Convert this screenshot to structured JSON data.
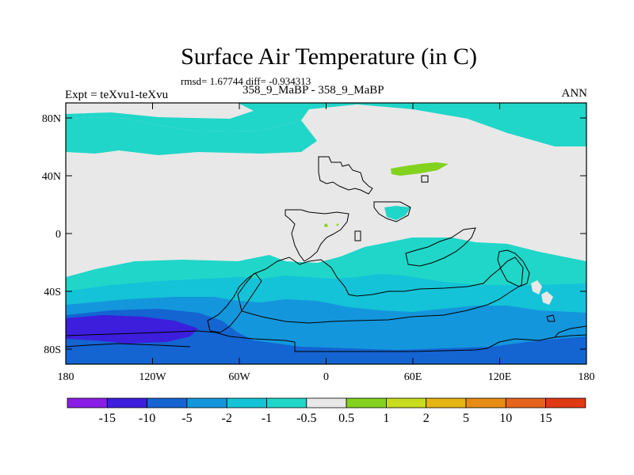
{
  "header": {
    "title": "Surface Air Temperature (in C)",
    "stats": "rmsd= 1.67744 diff= -0.934313",
    "subtitle": "358_9_MaBP - 358_9_MaBP",
    "experiment": "Expt = teXvu1-teXvu",
    "season": "ANN"
  },
  "map": {
    "lat_ticks": [
      "80N",
      "40N",
      "0",
      "40S",
      "80S"
    ],
    "lon_ticks": [
      "180",
      "120W",
      "60W",
      "0",
      "60E",
      "120E",
      "180"
    ]
  },
  "colorbar": {
    "labels": [
      "-15",
      "-10",
      "-5",
      "-2",
      "-1",
      "-0.5",
      "0.5",
      "1",
      "2",
      "5",
      "10",
      "15"
    ],
    "colors": [
      "#8a1ee6",
      "#3c1edc",
      "#1464d2",
      "#1496dc",
      "#14c3d7",
      "#20d6c8",
      "#e8e8e8",
      "#82d21e",
      "#c8dc1e",
      "#e6b414",
      "#e68c14",
      "#e6641e",
      "#e03a14"
    ]
  }
}
